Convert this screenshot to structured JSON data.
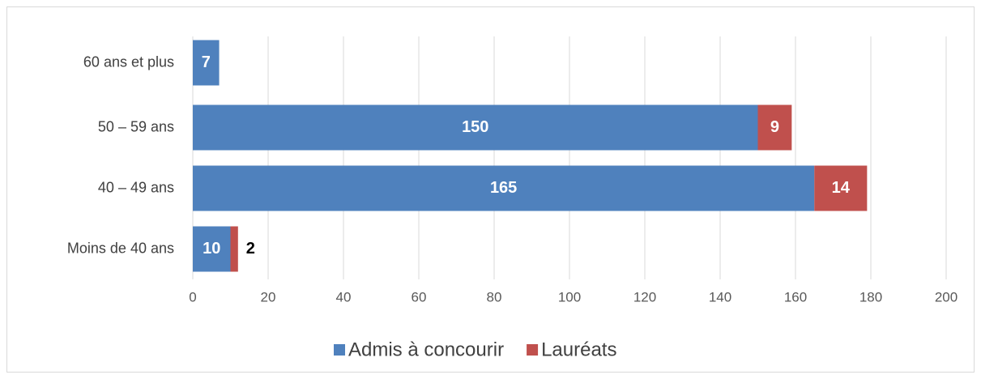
{
  "chart_data": {
    "type": "hbar-stacked",
    "categories": [
      "60 ans et plus",
      "50 – 59 ans",
      "40 – 49 ans",
      "Moins de 40 ans"
    ],
    "series": [
      {
        "name": "Admis à concourir",
        "color": "#4f81bd",
        "values": [
          7,
          150,
          165,
          10
        ]
      },
      {
        "name": "Lauréats",
        "color": "#c0504d",
        "values": [
          null,
          9,
          14,
          2
        ]
      }
    ],
    "xlim": [
      0,
      200
    ],
    "xticks": [
      0,
      20,
      40,
      60,
      80,
      100,
      120,
      140,
      160,
      180,
      200
    ],
    "grid": true,
    "legend": "bottom"
  }
}
